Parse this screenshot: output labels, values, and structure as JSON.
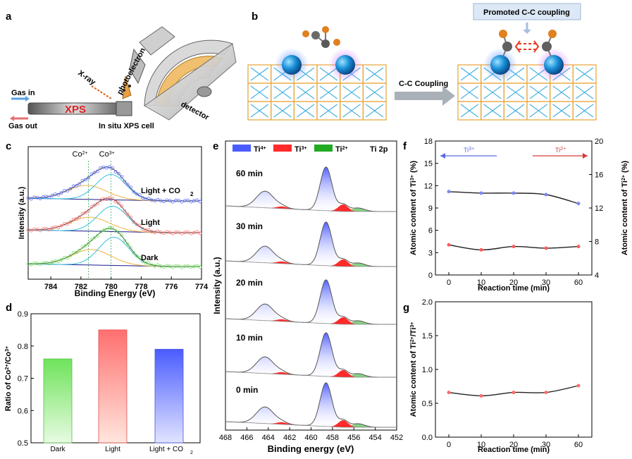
{
  "panel_labels": {
    "a": "a",
    "b": "b",
    "c": "c",
    "d": "d",
    "e": "e",
    "f": "f",
    "g": "g"
  },
  "panel_a": {
    "gas_in": "Gas in",
    "gas_out": "Gas out",
    "xps": "XPS",
    "xray": "X-ray",
    "photoelectron": "photoelectron",
    "cell": "In situ XPS cell",
    "detector": "detector"
  },
  "panel_b": {
    "promoted": "Promoted C-C coupling",
    "arrow_label": "C-C Coupling"
  },
  "colors": {
    "ti4": "#4a5cff",
    "ti3": "#ff2a2a",
    "ti2": "#22aa22",
    "dark": "#6ee35a",
    "light": "#ff6f6f",
    "lightco2": "#5a6bff"
  },
  "chart_data": [
    {
      "id": "c",
      "type": "line",
      "title": "",
      "xlabel": "Binding Energy (eV)",
      "ylabel": "Intensity (a.u.)",
      "xlim": [
        785.5,
        774
      ],
      "xticks": [
        "784",
        "782",
        "780",
        "778",
        "776",
        "774"
      ],
      "peak_labels": [
        "Co2+",
        "Co3+"
      ],
      "peak_positions": [
        781.5,
        780.0
      ],
      "series": [
        {
          "name": "Light + CO2",
          "label_main": "Light + CO",
          "label_sub": "2",
          "peaks": [
            781.6,
            780.0
          ]
        },
        {
          "name": "Light",
          "label_main": "Light",
          "label_sub": "",
          "peaks": [
            781.4,
            779.9
          ]
        },
        {
          "name": "Dark",
          "label_main": "Dark",
          "label_sub": "",
          "peaks": [
            781.3,
            779.8
          ]
        }
      ]
    },
    {
      "id": "d",
      "type": "bar",
      "ylabel": "Ratio of Co2+/Co3+",
      "categories": [
        "Dark",
        "Light",
        "Light + CO2"
      ],
      "category_labels": [
        "Dark",
        "Light",
        "Light + CO"
      ],
      "values": [
        0.76,
        0.85,
        0.79
      ],
      "ylim": [
        0.5,
        0.9
      ],
      "yticks": [
        "0.5",
        "0.6",
        "0.7",
        "0.8",
        "0.9"
      ]
    },
    {
      "id": "e",
      "type": "line",
      "xlabel": "Binding energy (eV)",
      "ylabel": "Intensity (a.u.)",
      "xlim": [
        468,
        452
      ],
      "xticks": [
        "468",
        "466",
        "464",
        "462",
        "460",
        "458",
        "456",
        "454",
        "452"
      ],
      "legend": [
        "Ti4+",
        "Ti3+",
        "Ti2+"
      ],
      "region_label": "Ti 2p",
      "series": [
        {
          "name": "60 min"
        },
        {
          "name": "30 min"
        },
        {
          "name": "20 min"
        },
        {
          "name": "10 min"
        },
        {
          "name": "0 min"
        }
      ],
      "peaks": {
        "ti4_2p1": 464.3,
        "ti4_2p3": 458.6,
        "ti3": 457.0,
        "ti2": 455.6
      }
    },
    {
      "id": "f",
      "type": "line",
      "xlabel": "Reaction time (min)",
      "ylabel_left": "Atomic content of Ti3+ (%)",
      "ylabel_right": "Atomic content of Ti2+ (%)",
      "x": [
        0,
        10,
        20,
        30,
        60
      ],
      "xticks": [
        "0",
        "10",
        "20",
        "30",
        "60"
      ],
      "ylim_left": [
        0,
        18
      ],
      "yticks_left": [
        "0",
        "3",
        "6",
        "9",
        "12",
        "15",
        "18"
      ],
      "ylim_right": [
        4,
        20
      ],
      "yticks_right": [
        "4",
        "8",
        "12",
        "16",
        "20"
      ],
      "legend": [
        "Ti3+",
        "Ti2+"
      ],
      "series": [
        {
          "name": "Ti3+",
          "axis": "left",
          "values": [
            11.2,
            11.0,
            11.0,
            10.8,
            9.6
          ]
        },
        {
          "name": "Ti2+",
          "axis": "right",
          "values": [
            7.6,
            7.0,
            7.4,
            7.2,
            7.4
          ]
        }
      ]
    },
    {
      "id": "g",
      "type": "line",
      "xlabel": "Reaction time (min)",
      "ylabel": "Atomic content of Ti2+/Ti3+",
      "x": [
        0,
        10,
        20,
        30,
        60
      ],
      "xticks": [
        "0",
        "10",
        "20",
        "30",
        "60"
      ],
      "ylim": [
        0,
        2.0
      ],
      "yticks": [
        "0.0",
        "0.5",
        "1.0",
        "1.5",
        "2.0"
      ],
      "series": [
        {
          "name": "Ti2+/Ti3+",
          "values": [
            0.66,
            0.61,
            0.66,
            0.66,
            0.76
          ]
        }
      ]
    }
  ]
}
